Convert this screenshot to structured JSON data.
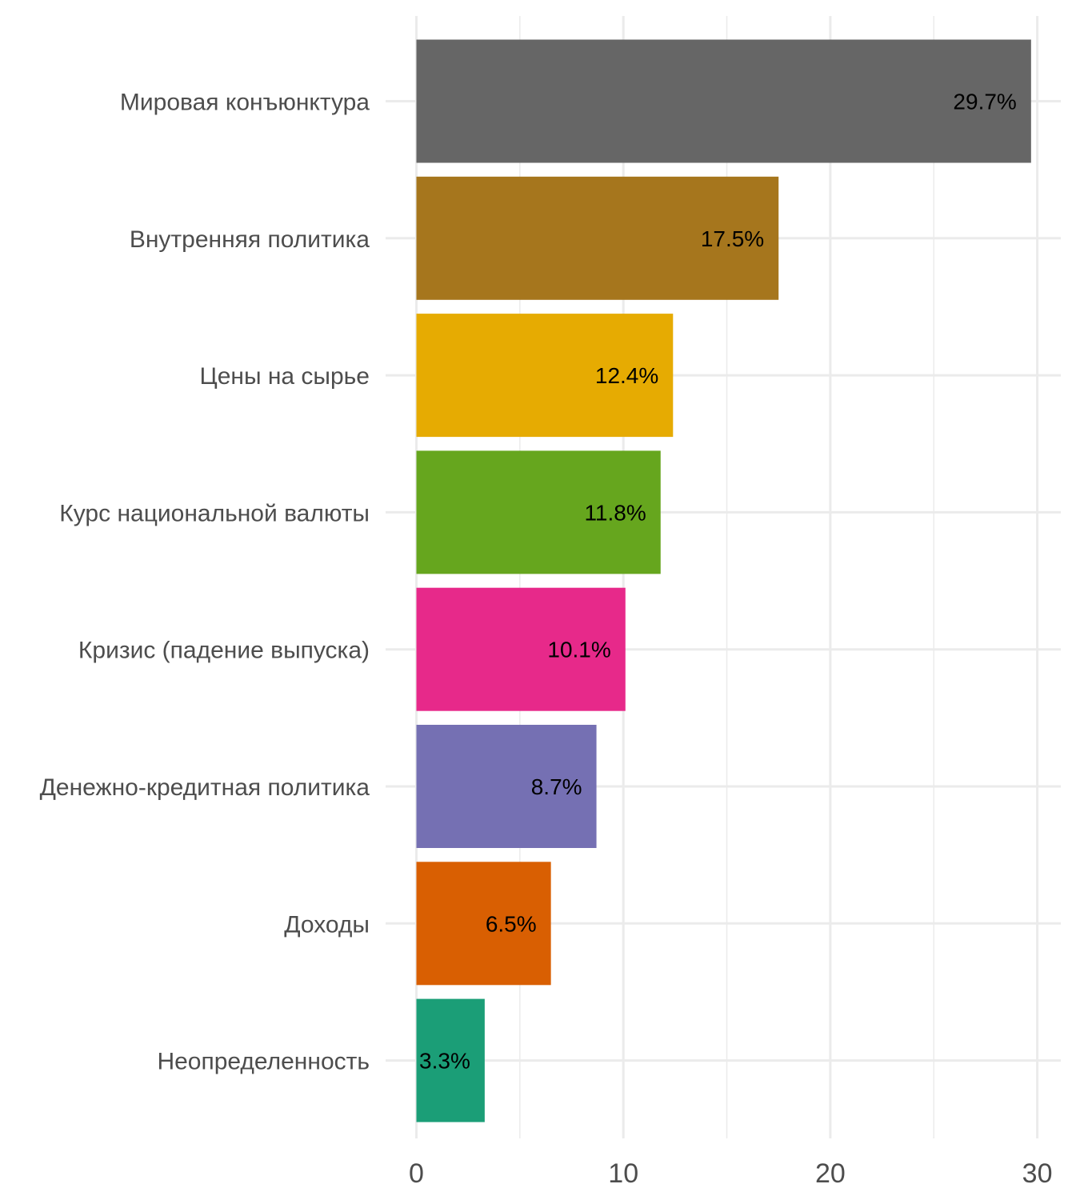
{
  "chart_data": {
    "type": "bar",
    "orientation": "horizontal",
    "title": "",
    "xlabel": "",
    "ylabel": "",
    "xlim": [
      0,
      31
    ],
    "x_ticks": [
      0,
      10,
      20,
      30
    ],
    "x_tick_labels": [
      "0",
      "10",
      "20",
      "30"
    ],
    "grid": true,
    "legend": "none",
    "categories": [
      "Мировая конъюнктура",
      "Внутренняя политика",
      "Цены на сырье",
      "Курс национальной валюты",
      "Кризис (падение выпуска)",
      "Денежно-кредитная политика",
      "Доходы",
      "Неопределенность"
    ],
    "values": [
      29.7,
      17.5,
      12.4,
      11.8,
      10.1,
      8.7,
      6.5,
      3.3
    ],
    "value_labels": [
      "29.7%",
      "17.5%",
      "12.4%",
      "11.8%",
      "10.1%",
      "8.7%",
      "6.5%",
      "3.3%"
    ],
    "colors": [
      "#666666",
      "#A6761D",
      "#E6AB02",
      "#66A61E",
      "#E7298A",
      "#7570B3",
      "#D95F02",
      "#1B9E77"
    ]
  }
}
